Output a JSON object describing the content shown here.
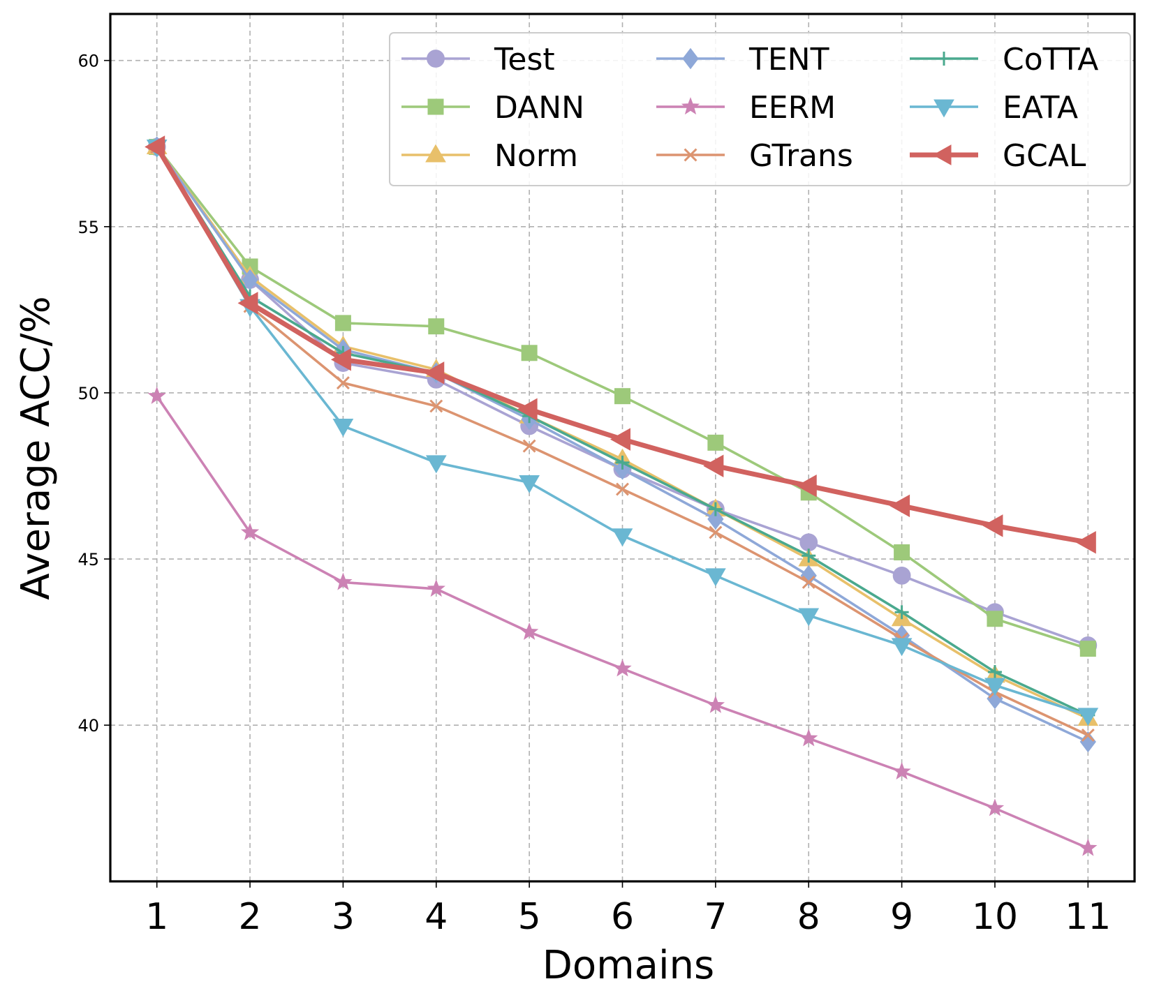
{
  "chart_data": {
    "type": "line",
    "title": "",
    "xlabel": "Domains",
    "ylabel": "Average ACC/%",
    "x": [
      1,
      2,
      3,
      4,
      5,
      6,
      7,
      8,
      9,
      10,
      11
    ],
    "x_tick_labels": [
      "1",
      "2",
      "3",
      "4",
      "5",
      "6",
      "7",
      "8",
      "9",
      "10",
      "11"
    ],
    "y_ticks": [
      40,
      45,
      50,
      55,
      60
    ],
    "y_tick_labels": [
      "40",
      "45",
      "50",
      "55",
      "60"
    ],
    "xlim": [
      0.5,
      11.5
    ],
    "ylim": [
      35.3,
      61.4
    ],
    "grid": true,
    "legend_position": "top-right",
    "legend_columns": 3,
    "series": [
      {
        "name": "Test",
        "color": "#a9a3d3",
        "marker": "circle",
        "values": [
          57.4,
          53.4,
          50.9,
          50.4,
          49.0,
          47.7,
          46.5,
          45.5,
          44.5,
          43.4,
          42.4
        ]
      },
      {
        "name": "DANN",
        "color": "#9dc97a",
        "marker": "square",
        "values": [
          57.4,
          53.8,
          52.1,
          52.0,
          51.2,
          49.9,
          48.5,
          47.0,
          45.2,
          43.2,
          42.3
        ]
      },
      {
        "name": "Norm",
        "color": "#e8c06a",
        "marker": "triangle-up",
        "values": [
          57.4,
          53.5,
          51.4,
          50.7,
          49.3,
          48.0,
          46.5,
          45.0,
          43.2,
          41.5,
          40.2
        ]
      },
      {
        "name": "TENT",
        "color": "#8ea8d8",
        "marker": "diamond",
        "values": [
          57.4,
          53.4,
          51.3,
          50.6,
          49.2,
          47.7,
          46.2,
          44.5,
          42.7,
          40.8,
          39.5
        ]
      },
      {
        "name": "EERM",
        "color": "#cc82b4",
        "marker": "star",
        "values": [
          49.9,
          45.8,
          44.3,
          44.1,
          42.8,
          41.7,
          40.6,
          39.6,
          38.6,
          37.5,
          36.3
        ]
      },
      {
        "name": "GTrans",
        "color": "#dc9470",
        "marker": "x",
        "values": [
          57.4,
          52.6,
          50.3,
          49.6,
          48.4,
          47.1,
          45.8,
          44.3,
          42.6,
          41.0,
          39.7
        ]
      },
      {
        "name": "CoTTA",
        "color": "#4aa98e",
        "marker": "plus",
        "values": [
          57.4,
          52.9,
          51.2,
          50.6,
          49.3,
          47.9,
          46.5,
          45.1,
          43.4,
          41.6,
          40.3
        ]
      },
      {
        "name": "EATA",
        "color": "#6ab7d2",
        "marker": "triangle-down",
        "values": [
          57.4,
          52.6,
          49.0,
          47.9,
          47.3,
          45.7,
          44.5,
          43.3,
          42.4,
          41.2,
          40.3
        ]
      },
      {
        "name": "GCAL",
        "color": "#d1625f",
        "marker": "triangle-left",
        "values": [
          57.4,
          52.7,
          51.0,
          50.6,
          49.5,
          48.6,
          47.8,
          47.2,
          46.6,
          46.0,
          45.5
        ]
      }
    ]
  }
}
